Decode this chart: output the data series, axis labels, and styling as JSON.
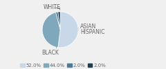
{
  "labels": [
    "WHITE",
    "BLACK",
    "ASIAN",
    "HISPANIC"
  ],
  "values": [
    52.0,
    44.0,
    2.0,
    2.0
  ],
  "colors": [
    "#c8d8e8",
    "#7fa8bc",
    "#4d7a96",
    "#1c3f55"
  ],
  "legend_labels": [
    "52.0%",
    "44.0%",
    "2.0%",
    "2.0%"
  ],
  "background_color": "#f0f0f0",
  "text_color": "#666666",
  "fontsize": 5.5,
  "startangle": 90
}
